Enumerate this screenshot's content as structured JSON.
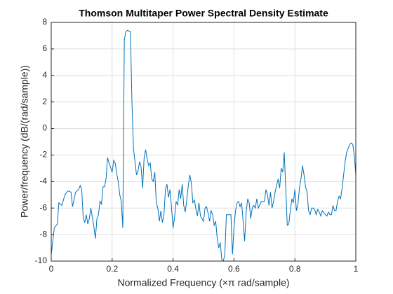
{
  "chart_data": {
    "type": "line",
    "title": "Thomson Multitaper Power Spectral Density Estimate",
    "xlabel": "Normalized Frequency (×π rad/sample)",
    "ylabel": "Power/frequency (dB/(rad/sample))",
    "color": "#0072bd",
    "grid": true,
    "xlim": [
      0,
      1
    ],
    "xticks": [
      0,
      0.2,
      0.4,
      0.6,
      0.8,
      1
    ],
    "ylim": [
      -10,
      8
    ],
    "yticks": [
      -10,
      -8,
      -6,
      -4,
      -2,
      0,
      2,
      4,
      6,
      8
    ],
    "x": [
      0,
      0.01,
      0.02,
      0.025,
      0.035,
      0.045,
      0.055,
      0.065,
      0.07,
      0.08,
      0.09,
      0.095,
      0.1,
      0.105,
      0.11,
      0.115,
      0.12,
      0.125,
      0.13,
      0.14,
      0.145,
      0.15,
      0.155,
      0.16,
      0.165,
      0.17,
      0.175,
      0.18,
      0.185,
      0.19,
      0.2,
      0.205,
      0.21,
      0.215,
      0.22,
      0.225,
      0.23,
      0.235,
      0.24,
      0.245,
      0.25,
      0.26,
      0.265,
      0.27,
      0.275,
      0.28,
      0.285,
      0.29,
      0.295,
      0.3,
      0.305,
      0.31,
      0.315,
      0.32,
      0.325,
      0.33,
      0.335,
      0.34,
      0.345,
      0.35,
      0.355,
      0.36,
      0.365,
      0.37,
      0.375,
      0.38,
      0.385,
      0.39,
      0.395,
      0.4,
      0.405,
      0.41,
      0.415,
      0.42,
      0.425,
      0.43,
      0.435,
      0.44,
      0.445,
      0.45,
      0.455,
      0.46,
      0.465,
      0.47,
      0.475,
      0.48,
      0.485,
      0.49,
      0.5,
      0.505,
      0.51,
      0.515,
      0.52,
      0.525,
      0.53,
      0.535,
      0.54,
      0.545,
      0.55,
      0.555,
      0.56,
      0.565,
      0.57,
      0.575,
      0.58,
      0.59,
      0.595,
      0.6,
      0.605,
      0.61,
      0.615,
      0.62,
      0.625,
      0.63,
      0.635,
      0.64,
      0.645,
      0.65,
      0.655,
      0.66,
      0.665,
      0.67,
      0.675,
      0.68,
      0.69,
      0.7,
      0.705,
      0.71,
      0.715,
      0.72,
      0.725,
      0.73,
      0.735,
      0.74,
      0.745,
      0.75,
      0.755,
      0.76,
      0.765,
      0.77,
      0.775,
      0.78,
      0.785,
      0.79,
      0.795,
      0.8,
      0.805,
      0.81,
      0.815,
      0.82,
      0.825,
      0.83,
      0.835,
      0.84,
      0.845,
      0.85,
      0.855,
      0.86,
      0.865,
      0.87,
      0.875,
      0.88,
      0.885,
      0.89,
      0.9,
      0.905,
      0.91,
      0.915,
      0.92,
      0.925,
      0.93,
      0.935,
      0.94,
      0.945,
      0.95,
      0.955,
      0.96,
      0.965,
      0.97,
      0.975,
      0.98,
      0.985,
      0.99,
      0.995,
      1
    ],
    "values": [
      -9.5,
      -7.5,
      -7.2,
      -5.6,
      -5.8,
      -5,
      -4.7,
      -4.8,
      -5.9,
      -4.8,
      -4.6,
      -4.3,
      -4.6,
      -6.7,
      -7.1,
      -6.5,
      -7.2,
      -6.8,
      -6,
      -7.4,
      -8.3,
      -6.8,
      -6.5,
      -5.5,
      -5.7,
      -4.4,
      -4.4,
      -3.8,
      -2.2,
      -2.6,
      -3.3,
      -2.4,
      -2.6,
      -3.4,
      -4,
      -5,
      -5.5,
      -7.5,
      6.7,
      7.3,
      7.4,
      7.3,
      2,
      -1.5,
      -2.5,
      -3.5,
      -3.2,
      -2.5,
      -2.9,
      -4.5,
      -2.2,
      -1.6,
      -2.3,
      -2.8,
      -2.6,
      -3.8,
      -4,
      -3.3,
      -5.6,
      -6,
      -7,
      -6.2,
      -7.1,
      -6.5,
      -4.6,
      -4.2,
      -5.2,
      -4.6,
      -6,
      -7.5,
      -6.7,
      -5.5,
      -5.8,
      -4.6,
      -5.3,
      -4.2,
      -5.8,
      -6.3,
      -5.4,
      -4.3,
      -3.5,
      -4.1,
      -5.6,
      -5.4,
      -6.1,
      -6.6,
      -5.6,
      -6.6,
      -7,
      -6,
      -5.9,
      -6.4,
      -7,
      -6.2,
      -6.5,
      -7.3,
      -7,
      -8.3,
      -9,
      -8.6,
      -9.9,
      -10,
      -9.5,
      -6.5,
      -6.5,
      -6.5,
      -9.5,
      -7.5,
      -6.2,
      -5.6,
      -5.5,
      -5.9,
      -5.6,
      -7,
      -8.5,
      -6.3,
      -5.3,
      -5.6,
      -6.8,
      -6,
      -5.8,
      -6,
      -5.3,
      -6,
      -5.5,
      -5.5,
      -4.6,
      -5,
      -5.8,
      -4.8,
      -6,
      -5.5,
      -4.8,
      -4.3,
      -3.8,
      -4.5,
      -3,
      -3.3,
      -1.8,
      -4.5,
      -7.3,
      -7.2,
      -6.2,
      -5.3,
      -5.6,
      -4.6,
      -6.2,
      -5.7,
      -4.5,
      -3.8,
      -2.8,
      -3.5,
      -4.4,
      -4.8,
      -6.2,
      -6.5,
      -6,
      -6,
      -6.1,
      -6.5,
      -6.1,
      -6.3,
      -6.6,
      -6.2,
      -6.5,
      -6.6,
      -6.3,
      -6.5,
      -6.5,
      -5.8,
      -6.2,
      -6.2,
      -5.5,
      -5.1,
      -5.3,
      -4.5,
      -3.5,
      -2.5,
      -1.8,
      -1.5,
      -1.2,
      -1.1,
      -1.2,
      -2,
      -3.5
    ]
  }
}
